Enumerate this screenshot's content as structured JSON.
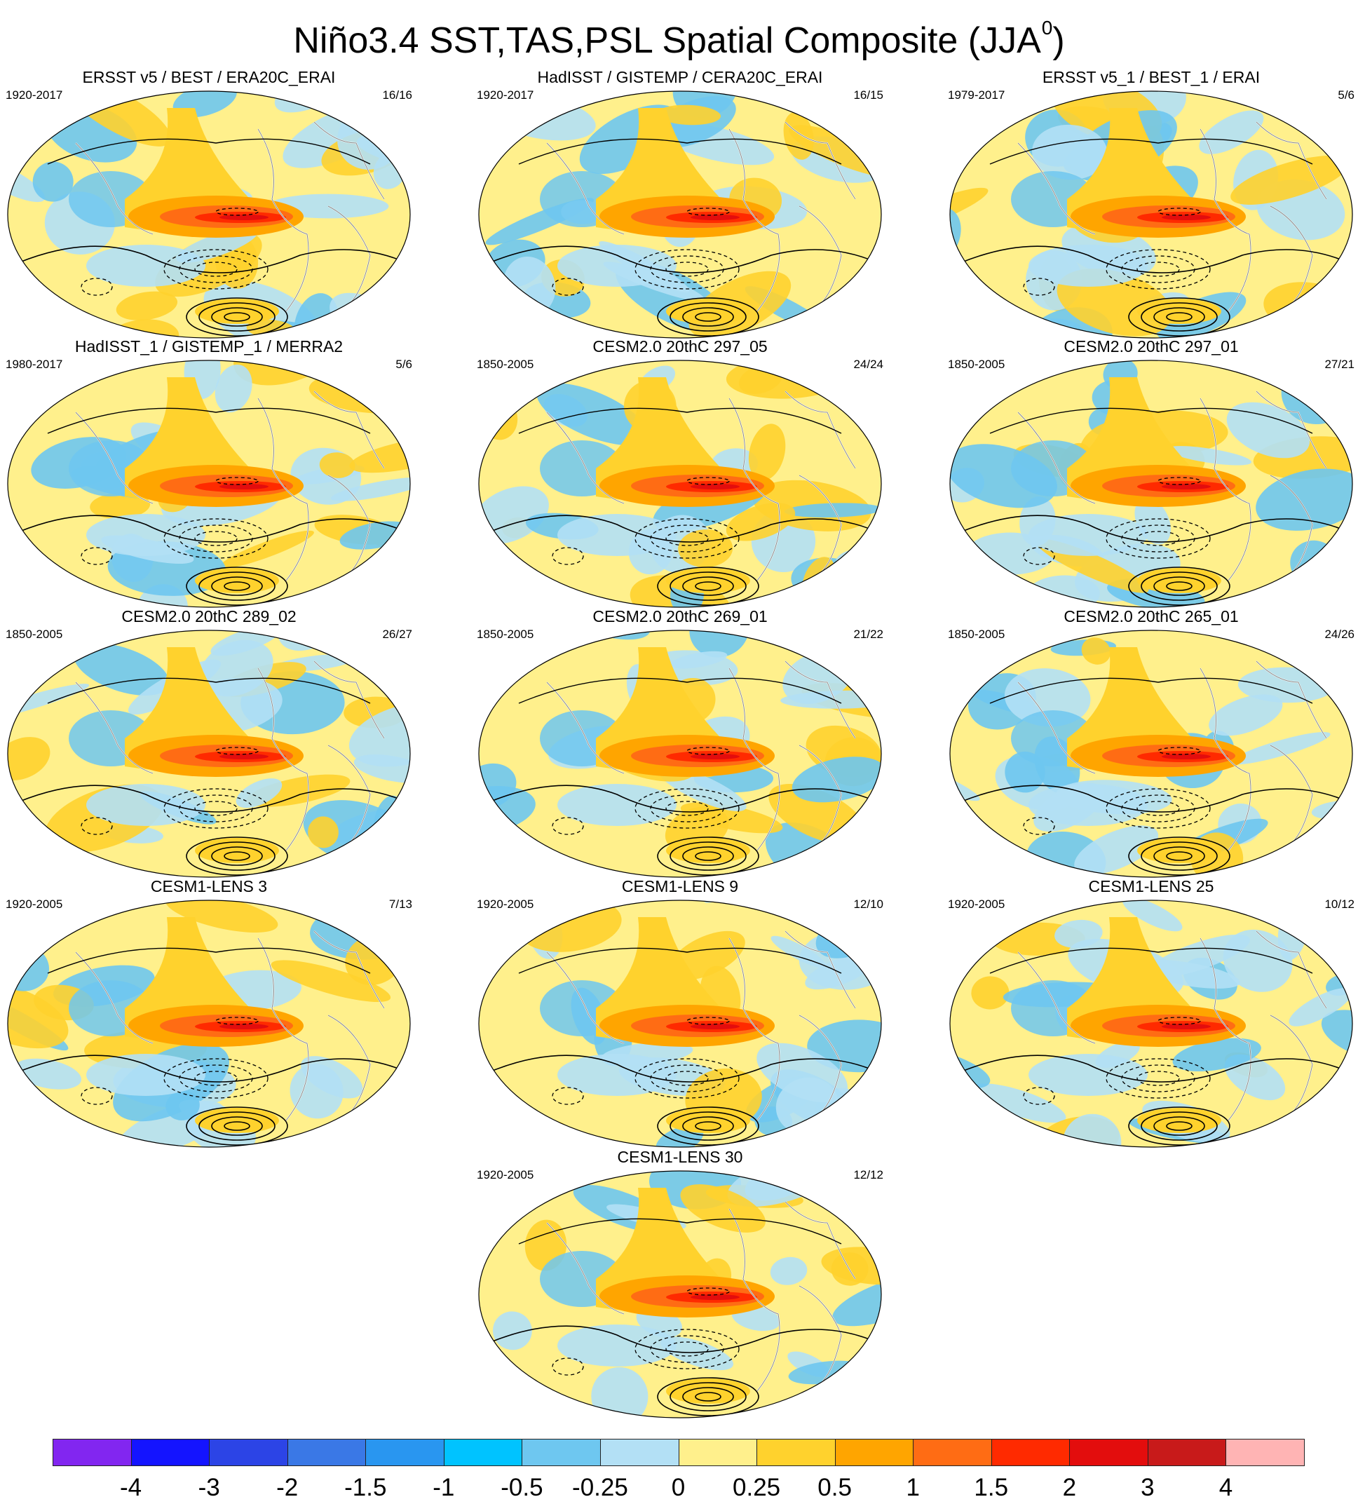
{
  "title": {
    "text": "Niño3.4 SST,TAS,PSL Spatial Composite (JJA",
    "superscript": "0",
    "suffix": ")"
  },
  "panels": [
    {
      "title": "ERSST v5 / BEST / ERA20C_ERAI",
      "period": "1920-2017",
      "count": "16/16"
    },
    {
      "title": "HadISST / GISTEMP / CERA20C_ERAI",
      "period": "1920-2017",
      "count": "16/15"
    },
    {
      "title": "ERSST v5_1 / BEST_1 / ERAI",
      "period": "1979-2017",
      "count": "5/6"
    },
    {
      "title": "HadISST_1 / GISTEMP_1 / MERRA2",
      "period": "1980-2017",
      "count": "5/6"
    },
    {
      "title": "CESM2.0 20thC 297_05",
      "period": "1850-2005",
      "count": "24/24"
    },
    {
      "title": "CESM2.0 20thC 297_01",
      "period": "1850-2005",
      "count": "27/21"
    },
    {
      "title": "CESM2.0 20thC 289_02",
      "period": "1850-2005",
      "count": "26/27"
    },
    {
      "title": "CESM2.0 20thC 269_01",
      "period": "1850-2005",
      "count": "21/22"
    },
    {
      "title": "CESM2.0 20thC 265_01",
      "period": "1850-2005",
      "count": "24/26"
    },
    {
      "title": "CESM1-LENS 3",
      "period": "1920-2005",
      "count": "7/13"
    },
    {
      "title": "CESM1-LENS 9",
      "period": "1920-2005",
      "count": "12/10"
    },
    {
      "title": "CESM1-LENS 25",
      "period": "1920-2005",
      "count": "10/12"
    },
    {
      "title": "CESM1-LENS 30",
      "period": "1920-2005",
      "count": "12/12"
    }
  ],
  "colorbar": {
    "labels": [
      "-4",
      "-3",
      "-2",
      "-1.5",
      "-1",
      "-0.5",
      "-0.25",
      "0",
      "0.25",
      "0.5",
      "1",
      "1.5",
      "2",
      "3",
      "4"
    ],
    "colors": [
      "#8226f0",
      "#1414ff",
      "#2c44e6",
      "#3a78e6",
      "#2996f0",
      "#00c3ff",
      "#6ec7f0",
      "#b3e0f5",
      "#fff08c",
      "#ffd22d",
      "#ffa500",
      "#ff6c14",
      "#ff2a00",
      "#e30d0d",
      "#c81a1a",
      "#ffb4b4"
    ]
  }
}
